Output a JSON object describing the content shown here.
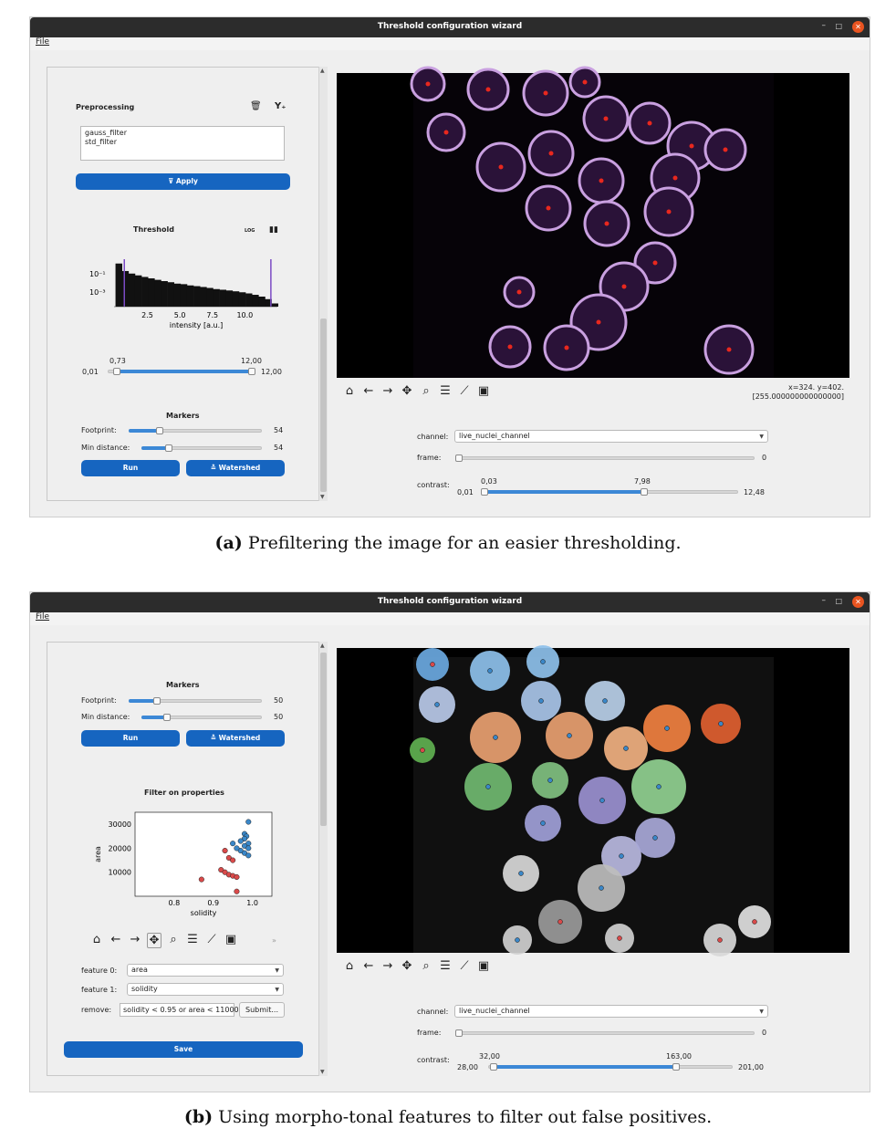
{
  "window_a": {
    "title": "Threshold configuration wizard",
    "menu_file": "File",
    "preprocessing": {
      "heading": "Preprocessing",
      "filters": [
        "gauss_filter",
        "std_filter"
      ],
      "apply_label": "Apply",
      "delete_icon": "trash-icon",
      "add_filter_icon": "filter-add-icon"
    },
    "threshold": {
      "heading": "Threshold",
      "log_label": "LOG",
      "hist_icon": "histogram-icon",
      "xlabel": "intensity [a.u.]",
      "xticks": [
        "2.5",
        "5.0",
        "7.5",
        "10.0"
      ],
      "yticks": [
        "10⁻¹",
        "10⁻³"
      ],
      "range_min": "0,01",
      "range_max": "12,00",
      "low_value": "0,73",
      "high_value": "12,00",
      "low": 0.73,
      "high": 12.0,
      "min": 0.01,
      "max": 12.0
    },
    "markers": {
      "heading": "Markers",
      "footprint_label": "Footprint:",
      "footprint_value": "54",
      "footprint_level": 0.35,
      "min_distance_label": "Min distance:",
      "min_distance_value": "54",
      "min_distance_level": 0.35,
      "run_label": "Run",
      "watershed_label": "Watershed"
    },
    "viewer": {
      "coords": "x=324. y=402.",
      "pixel_value": "[255.000000000000000]",
      "channel_label": "channel:",
      "channel_value": "live_nuclei_channel",
      "frame_label": "frame:",
      "frame_value": "0",
      "contrast_label": "contrast:",
      "contrast_min": "0,01",
      "contrast_max": "12,48",
      "contrast_low": "0,03",
      "contrast_high": "7,98",
      "contrast_low_level": 0.0,
      "contrast_high_level": 0.64
    },
    "caption_tag": "(a)",
    "caption": "Prefiltering the image for an easier thresholding."
  },
  "window_b": {
    "title": "Threshold configuration wizard",
    "menu_file": "File",
    "markers": {
      "heading": "Markers",
      "footprint_label": "Footprint:",
      "footprint_value": "50",
      "footprint_level": 0.32,
      "min_distance_label": "Min distance:",
      "min_distance_value": "50",
      "min_distance_level": 0.32,
      "run_label": "Run",
      "watershed_label": "Watershed"
    },
    "filter": {
      "heading": "Filter on properties",
      "xlabel": "solidity",
      "ylabel": "area",
      "xticks": [
        "0.8",
        "0.9",
        "1.0"
      ],
      "yticks": [
        "30000",
        "20000",
        "10000"
      ],
      "feature0_label": "feature 0:",
      "feature0_value": "area",
      "feature1_label": "feature 1:",
      "feature1_value": "solidity",
      "remove_label": "remove:",
      "remove_value": "solidity < 0.95 or area < 11000",
      "submit_label": "Submit...",
      "save_label": "Save"
    },
    "viewer": {
      "channel_label": "channel:",
      "channel_value": "live_nuclei_channel",
      "frame_label": "frame:",
      "frame_value": "0",
      "contrast_label": "contrast:",
      "contrast_min": "28,00",
      "contrast_max": "201,00",
      "contrast_low": "32,00",
      "contrast_high": "163,00",
      "contrast_low_level": 0.02,
      "contrast_high_level": 0.78
    },
    "caption_tag": "(b)",
    "caption": "Using morpho-tonal features to filter out false positives."
  },
  "chart_data": [
    {
      "type": "bar",
      "title": "",
      "xlabel": "intensity [a.u.]",
      "ylabel": "",
      "yscale": "log",
      "xlim": [
        0.01,
        12.5
      ],
      "x": [
        0.3,
        0.8,
        1.3,
        1.8,
        2.3,
        2.8,
        3.3,
        3.8,
        4.3,
        4.8,
        5.3,
        5.8,
        6.3,
        6.8,
        7.3,
        7.8,
        8.3,
        8.8,
        9.3,
        9.8,
        10.3,
        10.8,
        11.3,
        11.8,
        12.3
      ],
      "values": [
        0.3,
        0.09,
        0.06,
        0.045,
        0.035,
        0.028,
        0.022,
        0.018,
        0.015,
        0.012,
        0.011,
        0.009,
        0.008,
        0.007,
        0.006,
        0.005,
        0.0045,
        0.004,
        0.0035,
        0.003,
        0.0025,
        0.002,
        0.0015,
        0.001,
        0.0005
      ],
      "threshold_lines": [
        0.73,
        12.0
      ]
    },
    {
      "type": "scatter",
      "title": "",
      "xlabel": "solidity",
      "ylabel": "area",
      "xlim": [
        0.7,
        1.05
      ],
      "ylim": [
        0,
        35000
      ],
      "series": [
        {
          "color": "#d94a4a",
          "points": [
            [
              0.87,
              7000
            ],
            [
              0.92,
              11000
            ],
            [
              0.93,
              10000
            ],
            [
              0.94,
              9000
            ],
            [
              0.95,
              8500
            ],
            [
              0.96,
              8000
            ],
            [
              0.93,
              19000
            ],
            [
              0.94,
              16000
            ],
            [
              0.96,
              2000
            ],
            [
              0.95,
              15000
            ]
          ]
        },
        {
          "color": "#3a87c8",
          "points": [
            [
              0.99,
              31000
            ],
            [
              0.98,
              26000
            ],
            [
              0.985,
              25000
            ],
            [
              0.98,
              24000
            ],
            [
              0.97,
              23000
            ],
            [
              0.95,
              22000
            ],
            [
              0.99,
              22000
            ],
            [
              0.98,
              21000
            ],
            [
              0.99,
              20000
            ],
            [
              0.97,
              19000
            ],
            [
              0.98,
              18000
            ],
            [
              0.99,
              17000
            ],
            [
              0.96,
              20000
            ]
          ]
        }
      ]
    }
  ]
}
